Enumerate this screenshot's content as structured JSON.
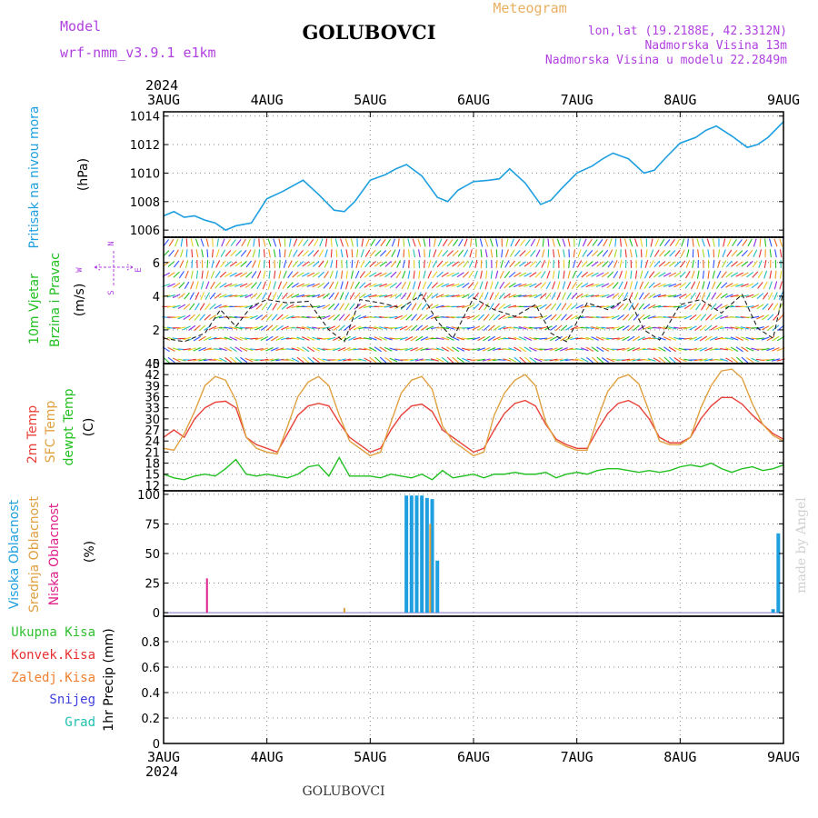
{
  "header": {
    "model_label": "Model",
    "model_name": "wrf-nmm_v3.9.1 e1km",
    "station": "GOLUBOVCI",
    "meteogram_label": "Meteogram",
    "lonlat": "lon,lat (19.2188E, 42.3312N)",
    "altitude": "Nadmorska Visina 13m",
    "model_altitude": "Nadmorska Visina u modelu 22.2849m"
  },
  "footer": {
    "station": "GOLUBOVCI",
    "credit": "made by Angel"
  },
  "colors": {
    "pressure": "#1e9fe0",
    "t2m": "#e8423a",
    "sfc": "#e0a040",
    "dewpt": "#22c022",
    "high_cloud": "#1e9fe0",
    "mid_cloud": "#e0a040",
    "low_cloud": "#e0208a",
    "total_precip": "#30c030",
    "conv_precip": "#e83030",
    "frz_precip": "#f08030",
    "snow": "#4040e0",
    "grad": "#20c0b0",
    "wind_label": "#22c022",
    "brzina": "#22c022",
    "compass": "#b040e0",
    "header_purple": "#b040e0",
    "meteogram": "#e8b060"
  },
  "time_axis": {
    "year": "2024",
    "ticks": [
      "3AUG",
      "4AUG",
      "5AUG",
      "6AUG",
      "7AUG",
      "8AUG",
      "9AUG"
    ]
  },
  "panels": {
    "pressure": {
      "label": "Pritisak na nivou mora",
      "unit": "(hPa)"
    },
    "wind": {
      "label1": "10m Vjetar",
      "label2": "Brzina i Pravac",
      "unit": "(m/s)",
      "compass_top": "N",
      "compass_west": "W",
      "compass_east": "E",
      "compass_bottom": "S"
    },
    "temp": {
      "label1": "2m Temp",
      "label2": "SFC Temp",
      "label3": "dewpt Temp",
      "unit": "(C)"
    },
    "cloud": {
      "label1": "Visoka Oblacnost",
      "label2": "Srednja Oblacnost",
      "label3": "Niska Oblacnost",
      "unit": "(%)"
    },
    "precip": {
      "items": [
        "Ukupna Kisa",
        "Konvek.Kisa",
        "Zaledj.Kisa",
        "Snijeg",
        "Grad"
      ],
      "axis_label": "1hr Precip (mm)"
    }
  },
  "chart_data": [
    {
      "type": "line",
      "panel": "pressure",
      "ylabel": "(hPa)",
      "ylim": [
        1005.5,
        1014.3
      ],
      "yticks": [
        1006,
        1008,
        1010,
        1012,
        1014
      ],
      "grid": true,
      "x_days": [
        0,
        0.1,
        0.2,
        0.3,
        0.4,
        0.5,
        0.6,
        0.7,
        0.85,
        1.0,
        1.15,
        1.25,
        1.35,
        1.5,
        1.65,
        1.75,
        1.85,
        2.0,
        2.15,
        2.25,
        2.35,
        2.5,
        2.65,
        2.75,
        2.85,
        3.0,
        3.15,
        3.25,
        3.35,
        3.5,
        3.65,
        3.75,
        3.85,
        4.0,
        4.15,
        4.25,
        4.35,
        4.5,
        4.65,
        4.75,
        4.85,
        5.0,
        5.15,
        5.25,
        5.35,
        5.5,
        5.65,
        5.75,
        5.85,
        6.0
      ],
      "series": [
        {
          "values": [
            1007.0,
            1007.3,
            1006.9,
            1007.0,
            1006.7,
            1006.5,
            1006.0,
            1006.3,
            1006.5,
            1008.2,
            1008.7,
            1009.1,
            1009.5,
            1008.5,
            1007.4,
            1007.3,
            1008.0,
            1009.5,
            1009.9,
            1010.3,
            1010.6,
            1009.8,
            1008.3,
            1008.0,
            1008.8,
            1009.4,
            1009.5,
            1009.6,
            1010.3,
            1009.3,
            1007.8,
            1008.1,
            1008.9,
            1010.0,
            1010.5,
            1011.0,
            1011.4,
            1011.0,
            1010.0,
            1010.2,
            1011.0,
            1012.1,
            1012.5,
            1013.0,
            1013.3,
            1012.6,
            1011.8,
            1012.0,
            1012.5,
            1013.6
          ]
        }
      ]
    },
    {
      "type": "line",
      "panel": "wind",
      "ylabel": "(m/s)",
      "ylim": [
        0,
        7.5
      ],
      "yticks": [
        0,
        2,
        4,
        6
      ],
      "grid": true,
      "series": [
        {
          "name": "speed_estimate",
          "x_days": [
            0,
            0.2,
            0.4,
            0.55,
            0.7,
            0.85,
            1.0,
            1.2,
            1.4,
            1.6,
            1.75,
            1.9,
            2.1,
            2.3,
            2.5,
            2.65,
            2.8,
            3.0,
            3.2,
            3.4,
            3.6,
            3.75,
            3.9,
            4.1,
            4.3,
            4.5,
            4.65,
            4.8,
            5.0,
            5.2,
            5.4,
            5.6,
            5.75,
            5.9,
            6.0
          ],
          "values": [
            1.5,
            1.3,
            1.8,
            3.2,
            2.2,
            3.4,
            3.8,
            3.6,
            3.7,
            2.0,
            1.3,
            3.8,
            3.6,
            3.3,
            4.1,
            2.5,
            1.5,
            3.9,
            3.2,
            2.8,
            3.5,
            1.8,
            1.3,
            3.6,
            3.2,
            3.9,
            2.0,
            1.4,
            3.5,
            3.8,
            3.0,
            4.1,
            2.1,
            1.5,
            4.3
          ]
        }
      ]
    },
    {
      "type": "line",
      "panel": "temp",
      "ylabel": "(C)",
      "ylim": [
        10.5,
        45
      ],
      "yticks": [
        12,
        15,
        18,
        21,
        24,
        27,
        30,
        33,
        36,
        39,
        42,
        45
      ],
      "grid": true,
      "x_days": [
        0,
        0.1,
        0.2,
        0.3,
        0.4,
        0.5,
        0.6,
        0.7,
        0.8,
        0.9,
        1.0,
        1.1,
        1.2,
        1.3,
        1.4,
        1.5,
        1.6,
        1.7,
        1.8,
        1.9,
        2.0,
        2.1,
        2.2,
        2.3,
        2.4,
        2.5,
        2.6,
        2.7,
        2.8,
        2.9,
        3.0,
        3.1,
        3.2,
        3.3,
        3.4,
        3.5,
        3.6,
        3.7,
        3.8,
        3.9,
        4.0,
        4.1,
        4.2,
        4.3,
        4.4,
        4.5,
        4.6,
        4.7,
        4.8,
        4.9,
        5.0,
        5.1,
        5.2,
        5.3,
        5.4,
        5.5,
        5.6,
        5.7,
        5.8,
        5.9,
        6.0
      ],
      "series": [
        {
          "name": "2m Temp",
          "values": [
            25,
            27,
            25,
            30,
            33,
            34.5,
            34.8,
            33,
            25,
            23,
            22,
            21,
            26,
            31,
            33.5,
            34.2,
            33.5,
            29,
            25,
            23,
            21,
            22,
            27,
            31,
            33.5,
            34,
            32,
            27,
            25,
            23,
            21,
            22,
            27,
            31.5,
            34.2,
            35,
            33.5,
            28.5,
            24.5,
            23,
            22,
            22,
            27,
            31.5,
            34.2,
            35,
            33.5,
            30,
            25,
            23.5,
            23.5,
            25,
            30,
            33.5,
            35.8,
            35.8,
            34,
            31,
            28.5,
            26,
            24.5
          ]
        },
        {
          "name": "SFC Temp",
          "values": [
            22,
            21.5,
            26,
            32,
            39,
            41.5,
            40.5,
            35,
            25,
            22,
            21,
            20.5,
            28,
            36,
            40,
            41.5,
            39,
            31,
            24,
            22,
            20,
            21,
            29,
            37,
            40.5,
            41.5,
            38,
            28,
            24,
            22,
            20,
            21,
            31,
            37,
            40.5,
            42,
            39,
            29,
            24,
            22.5,
            21.5,
            21.5,
            30,
            37.5,
            41,
            42,
            39.5,
            32,
            24,
            23,
            23,
            25,
            33,
            39,
            43,
            43.5,
            41,
            34,
            28.5,
            25.5,
            24
          ]
        },
        {
          "name": "dewpt Temp",
          "values": [
            15,
            14,
            13.5,
            14.5,
            15,
            14.5,
            16.5,
            19,
            15,
            14.5,
            15,
            14.5,
            14,
            15,
            17,
            17.5,
            14.5,
            19.5,
            14.5,
            14.5,
            14.5,
            14,
            15,
            14.5,
            14,
            15,
            13.5,
            16,
            14,
            14.5,
            15,
            14,
            15,
            15,
            15.5,
            15,
            15,
            15.5,
            14,
            15,
            15.5,
            15,
            16,
            16.5,
            16.5,
            16,
            15.5,
            16,
            15.5,
            16,
            17,
            17.5,
            17,
            18,
            16.5,
            15.5,
            16.5,
            17,
            16,
            16.5,
            17.5
          ]
        }
      ]
    },
    {
      "type": "bar",
      "panel": "cloud",
      "ylabel": "(%)",
      "ylim": [
        -3,
        103
      ],
      "yticks": [
        0,
        25,
        50,
        75,
        100
      ],
      "grid": true,
      "series": [
        {
          "name": "Visoka Oblacnost",
          "x_days": [
            2.35,
            2.4,
            2.45,
            2.5,
            2.55,
            2.6,
            2.65,
            5.9,
            5.95
          ],
          "values": [
            99,
            99,
            99,
            99,
            97,
            96,
            44,
            3,
            67
          ]
        },
        {
          "name": "Srednja Oblacnost",
          "x_days": [
            1.75,
            2.58
          ],
          "values": [
            4,
            75
          ]
        },
        {
          "name": "Niska Oblacnost",
          "x_days": [
            0.42
          ],
          "values": [
            29
          ]
        }
      ]
    },
    {
      "type": "bar",
      "panel": "precip",
      "ylabel": "1hr Precip (mm)",
      "ylim": [
        0,
        1.0
      ],
      "yticks": [
        0,
        0.2,
        0.4,
        0.6,
        0.8
      ],
      "grid": true,
      "series": []
    }
  ]
}
